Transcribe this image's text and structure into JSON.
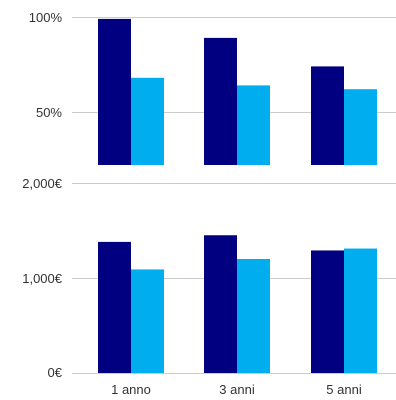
{
  "chart_data": [
    {
      "type": "bar",
      "categories": [
        "1 anno",
        "3 anni",
        "5 anni"
      ],
      "series": [
        {
          "values": [
            99,
            89,
            74
          ]
        },
        {
          "values": [
            68,
            64,
            62
          ]
        }
      ],
      "ylim": [
        35,
        100
      ],
      "yticks": [
        "50%",
        "100%"
      ],
      "grid": true,
      "colors": [
        "#000080",
        "#00aeef"
      ]
    },
    {
      "type": "bar",
      "categories": [
        "1 anno",
        "3 anni",
        "5 anni"
      ],
      "series": [
        {
          "values": [
            1380,
            1450,
            1290
          ]
        },
        {
          "values": [
            1090,
            1200,
            1310
          ]
        }
      ],
      "ylim": [
        0,
        2000
      ],
      "yticks": [
        "0€",
        "1,000€",
        "2,000€"
      ],
      "grid": true,
      "colors": [
        "#000080",
        "#00aeef"
      ]
    }
  ]
}
